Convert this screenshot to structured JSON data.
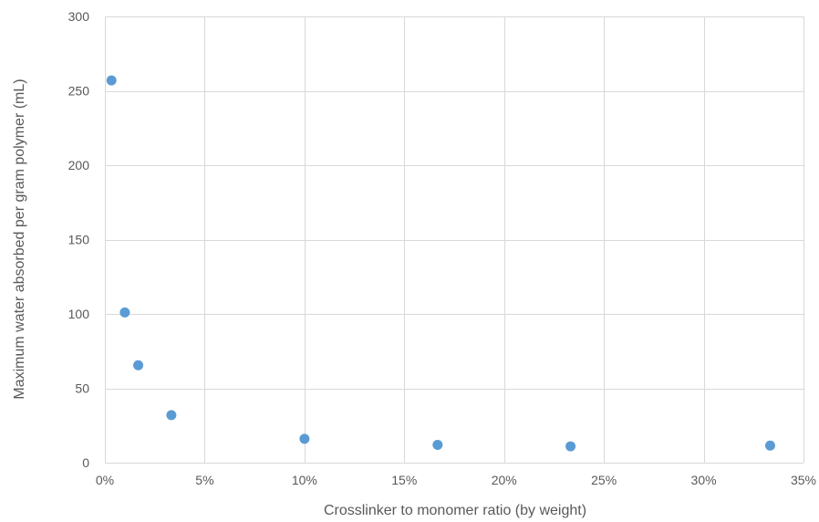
{
  "chart_data": {
    "type": "scatter",
    "title": "",
    "xlabel": "Crosslinker to monomer ratio (by weight)",
    "ylabel": "Maximum water absorbed per gram polymer (mL)",
    "xlim": [
      0,
      0.35
    ],
    "ylim": [
      0,
      300
    ],
    "x_ticks": [
      0,
      0.05,
      0.1,
      0.15,
      0.2,
      0.25,
      0.3,
      0.35
    ],
    "x_tick_labels": [
      "0%",
      "5%",
      "10%",
      "15%",
      "20%",
      "25%",
      "30%",
      "35%"
    ],
    "y_ticks": [
      0,
      50,
      100,
      150,
      200,
      250,
      300
    ],
    "y_tick_labels": [
      "0",
      "50",
      "100",
      "150",
      "200",
      "250",
      "300"
    ],
    "grid": true,
    "legend": "none",
    "marker_color": "#5b9bd5",
    "grid_color": "#d9d9d9",
    "series": [
      {
        "points": [
          {
            "x": 0.0033,
            "y": 257
          },
          {
            "x": 0.01,
            "y": 101
          },
          {
            "x": 0.0167,
            "y": 65.5
          },
          {
            "x": 0.0333,
            "y": 32
          },
          {
            "x": 0.1,
            "y": 16
          },
          {
            "x": 0.1667,
            "y": 12
          },
          {
            "x": 0.2333,
            "y": 11
          },
          {
            "x": 0.3333,
            "y": 11.5
          }
        ]
      }
    ]
  }
}
